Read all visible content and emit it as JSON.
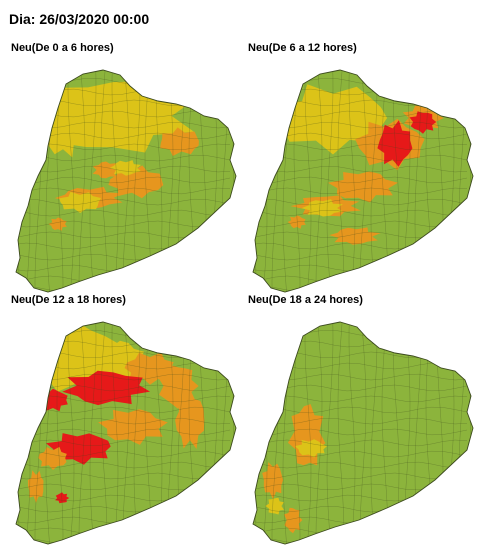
{
  "title": "Dia: 26/03/2020 00:00",
  "colors": {
    "green": "#8cb43c",
    "yellow": "#dcc318",
    "orange": "#e6961e",
    "red": "#e61919",
    "border": "#3c4a1e"
  },
  "panels": [
    {
      "label": "Neu(De 0 a 6 hores)"
    },
    {
      "label": "Neu(De 6 a 12 hores)"
    },
    {
      "label": "Neu(De 12 a 18 hores)"
    },
    {
      "label": "Neu(De 18 a 24 hores)"
    }
  ]
}
